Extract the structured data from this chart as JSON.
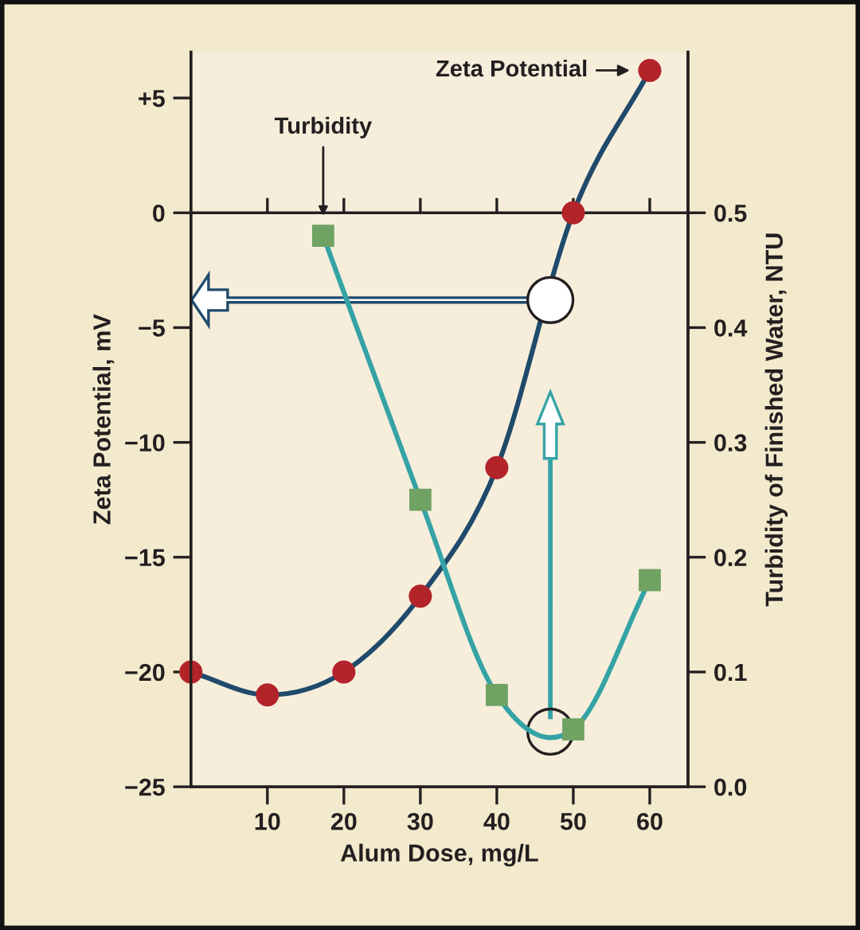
{
  "chart_data": {
    "type": "line",
    "xlabel": "Alum Dose, mg/L",
    "ylabel": "Zeta Potential, mV",
    "y2label": "Turbidity of Finished Water, NTU",
    "xlim": [
      0,
      65
    ],
    "xticks": [
      10,
      20,
      30,
      40,
      50,
      60
    ],
    "ylim": [
      -25,
      7
    ],
    "yticks": [
      {
        "value": 5,
        "label": "+5"
      },
      0,
      {
        "value": -5,
        "label": "−5"
      },
      {
        "value": -10,
        "label": "−10"
      },
      {
        "value": -15,
        "label": "−15"
      },
      {
        "value": -20,
        "label": "−20"
      },
      {
        "value": -25,
        "label": "−25"
      }
    ],
    "y2lim": [
      0,
      0.64
    ],
    "y2ticks": [
      {
        "value": 0.0,
        "label": "0.0"
      },
      0.1,
      0.2,
      0.3,
      0.4,
      0.5
    ],
    "ref_lines": [
      {
        "axis": "y",
        "value": 0,
        "color": "#231f20"
      }
    ],
    "grid": false,
    "series": [
      {
        "name": "Zeta Potential",
        "color": "#1f4a6b",
        "marker": "circle",
        "colors": [
          "#b3232a",
          "#b3232a",
          "#b3232a",
          "#b3232a",
          "#b3232a",
          "#b3232a",
          "#b3232a"
        ],
        "x": [
          0,
          10,
          20,
          30,
          40,
          50,
          60
        ],
        "values": [
          -20,
          -21,
          -20,
          -16.7,
          -11.1,
          0,
          6.2
        ]
      },
      {
        "name": "Turbidity",
        "color": "#35a3a6",
        "marker": "square",
        "colors": [
          "#6fa263",
          "#6fa263",
          "#6fa263",
          "#6fa263",
          "#6fa263"
        ],
        "axis": "y2",
        "x": [
          17.3,
          30,
          40,
          50,
          60
        ],
        "values": [
          0.48,
          0.25,
          0.08,
          0.05,
          0.18
        ]
      }
    ]
  }
}
